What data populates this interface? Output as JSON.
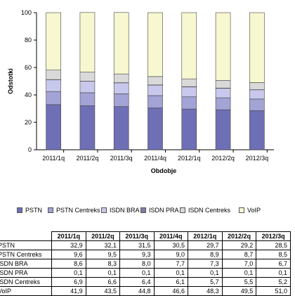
{
  "chart_data": {
    "type": "bar",
    "stacked": true,
    "categories": [
      "2011/1q",
      "2011/2q",
      "2011/3q",
      "2011/4q",
      "2012/1q",
      "2012/2q",
      "2012/3q"
    ],
    "series": [
      {
        "name": "PSTN",
        "values": [
          32.9,
          32.1,
          31.5,
          30.5,
          29.7,
          29.2,
          28.5
        ],
        "color": "#6f6fb5"
      },
      {
        "name": "PSTN Centreks",
        "values": [
          9.6,
          9.5,
          9.3,
          9.0,
          8.9,
          8.7,
          8.5
        ],
        "color": "#a3a3d6"
      },
      {
        "name": "ISDN BRA",
        "values": [
          8.6,
          8.3,
          8.0,
          7.7,
          7.3,
          7.0,
          6.7
        ],
        "color": "#c8c8ec"
      },
      {
        "name": "ISDN PRA",
        "values": [
          0.1,
          0.1,
          0.1,
          0.1,
          0.1,
          0.1,
          0.1
        ],
        "color": "#7f7fa8"
      },
      {
        "name": "ISDN Centreks",
        "values": [
          6.9,
          6.6,
          6.4,
          6.1,
          5.7,
          5.5,
          5.2
        ],
        "color": "#d9d9d9"
      },
      {
        "name": "VoIP",
        "values": [
          41.9,
          43.5,
          44.8,
          46.6,
          48.3,
          49.5,
          51.0
        ],
        "color": "#f7f7d0"
      }
    ],
    "table_values": {
      "PSTN": [
        "32,9",
        "32,1",
        "31,5",
        "30,5",
        "29,7",
        "29,2",
        "28,5"
      ],
      "PSTN Centreks": [
        "9,6",
        "9,5",
        "9,3",
        "9,0",
        "8,9",
        "8,7",
        "8,5"
      ],
      "ISDN BRA": [
        "8,6",
        "8,3",
        "8,0",
        "7,7",
        "7,3",
        "7,0",
        "6,7"
      ],
      "ISDN PRA": [
        "0,1",
        "0,1",
        "0,1",
        "0,1",
        "0,1",
        "0,1",
        "0,1"
      ],
      "ISDN Centreks": [
        "6,9",
        "6,6",
        "6,4",
        "6,1",
        "5,7",
        "5,5",
        "5,2"
      ],
      "VoIP": [
        "41,9",
        "43,5",
        "44,8",
        "46,6",
        "48,3",
        "49,5",
        "51,0"
      ]
    },
    "ylabel": "Odstotki",
    "xlabel": "Obdobje",
    "ylim": [
      0,
      100
    ],
    "yticks": [
      "0",
      "20",
      "40",
      "60",
      "80",
      "100"
    ],
    "grid": false,
    "legend": "bottom"
  },
  "table": {
    "headers": [
      "2011/1q",
      "2011/2q",
      "2011/3q",
      "2011/4q",
      "2012/1q",
      "2012/2q",
      "2012/3q"
    ],
    "rows": [
      {
        "label": "PSTN",
        "values": [
          "32,9",
          "32,1",
          "31,5",
          "30,5",
          "29,7",
          "29,2",
          "28,5"
        ]
      },
      {
        "label": "PSTN Centreks",
        "values": [
          "9,6",
          "9,5",
          "9,3",
          "9,0",
          "8,9",
          "8,7",
          "8,5"
        ]
      },
      {
        "label": "ISDN BRA",
        "values": [
          "8,6",
          "8,3",
          "8,0",
          "7,7",
          "7,3",
          "7,0",
          "6,7"
        ]
      },
      {
        "label": "ISDN PRA",
        "values": [
          "0,1",
          "0,1",
          "0,1",
          "0,1",
          "0,1",
          "0,1",
          "0,1"
        ]
      },
      {
        "label": "ISDN Centreks",
        "values": [
          "6,9",
          "6,6",
          "6,4",
          "6,1",
          "5,7",
          "5,5",
          "5,2"
        ]
      },
      {
        "label": "VoIP",
        "values": [
          "41,9",
          "43,5",
          "44,8",
          "46,6",
          "48,3",
          "49,5",
          "51,0"
        ]
      }
    ]
  }
}
